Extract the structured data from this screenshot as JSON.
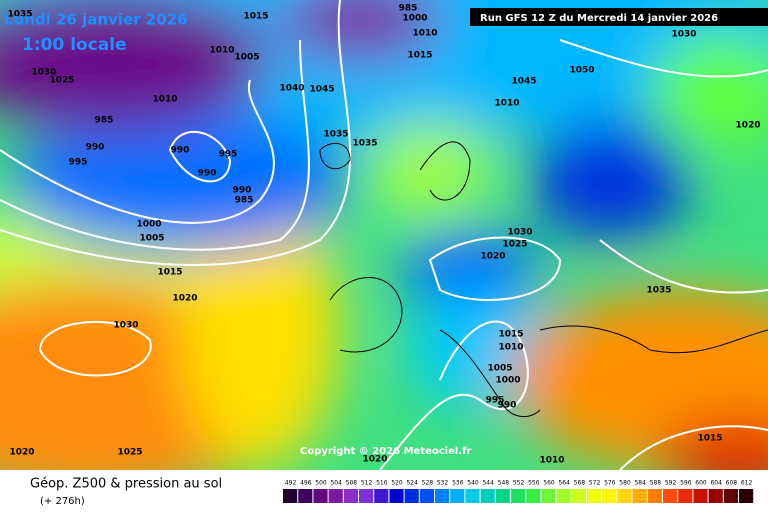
{
  "header": {
    "date": "Lundi 26 janvier 2026",
    "time": "1:00 locale",
    "run": "Run GFS 12 Z du Mercredi 14 janvier 2026"
  },
  "isobars": [
    "1035",
    "1015",
    "985",
    "1000",
    "1010",
    "1030",
    "1005",
    "1010",
    "1015",
    "1050",
    "1045",
    "1030",
    "1025",
    "1010",
    "1040",
    "1045",
    "1010",
    "985",
    "1020",
    "990",
    "990",
    "1035",
    "1035",
    "995",
    "995",
    "990",
    "990",
    "985",
    "1000",
    "1005",
    "1030",
    "1025",
    "1020",
    "1015",
    "1020",
    "1035",
    "1030",
    "1015",
    "1010",
    "1005",
    "1000",
    "995",
    "990",
    "1020",
    "1025",
    "1020",
    "1010",
    "1015"
  ],
  "copyright": "Copyright © 2026 Meteociel.fr",
  "footer": {
    "title": "Géop. Z500 & pression au sol",
    "lead": "(+ 276h)"
  },
  "scale": {
    "ticks": [
      492,
      496,
      500,
      504,
      508,
      512,
      516,
      520,
      524,
      528,
      532,
      536,
      540,
      544,
      548,
      552,
      556,
      560,
      564,
      568,
      572,
      576,
      580,
      584,
      588,
      592,
      596,
      600,
      604,
      608,
      612
    ]
  }
}
